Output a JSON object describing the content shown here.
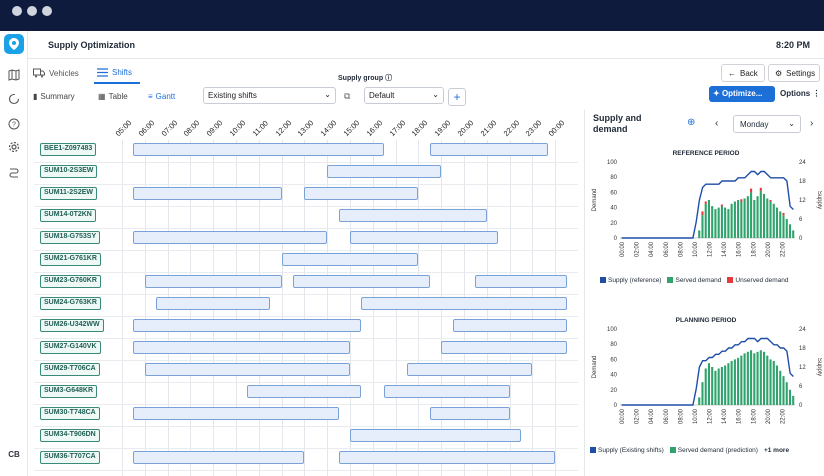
{
  "app": {
    "title": "Supply Optimization",
    "time": "8:20 PM",
    "user_initials": "CB"
  },
  "tabs": [
    {
      "label": "Vehicles"
    },
    {
      "label": "Shifts"
    }
  ],
  "subtabs": [
    {
      "label": "Summary"
    },
    {
      "label": "Table"
    },
    {
      "label": "Gantt"
    }
  ],
  "shift_select": "Existing shifts",
  "supply_group": {
    "label": "Supply group",
    "value": "Default"
  },
  "actions": {
    "back": "Back",
    "settings": "Settings",
    "optimize": "Optimize...",
    "options": "Options"
  },
  "supply_panel": {
    "title": "Supply and demand",
    "day": "Monday"
  },
  "hours": [
    "05:00",
    "06:00",
    "07:00",
    "08:00",
    "09:00",
    "10:00",
    "11:00",
    "12:00",
    "13:00",
    "14:00",
    "15:00",
    "16:00",
    "17:00",
    "18:00",
    "19:00",
    "20:00",
    "21:00",
    "22:00",
    "23:00",
    "00:00"
  ],
  "vehicles": [
    {
      "id": "BEE1-Z097483",
      "shifts": [
        [
          5.5,
          16.5
        ],
        [
          18.5,
          23.7
        ]
      ]
    },
    {
      "id": "SUM10-2S3EW",
      "shifts": [
        [
          14.0,
          19.0
        ]
      ]
    },
    {
      "id": "SUM11-2S2EW",
      "shifts": [
        [
          5.5,
          12.0
        ],
        [
          13.0,
          18.0
        ]
      ]
    },
    {
      "id": "SUM14-0T2KN",
      "shifts": [
        [
          14.5,
          21.0
        ]
      ]
    },
    {
      "id": "SUM18-G753SY",
      "shifts": [
        [
          5.5,
          14.0
        ],
        [
          15.0,
          21.5
        ]
      ]
    },
    {
      "id": "SUM21-G761KR",
      "shifts": [
        [
          12.0,
          18.0
        ]
      ]
    },
    {
      "id": "SUM23-G760KR",
      "shifts": [
        [
          6.0,
          12.0
        ],
        [
          12.5,
          18.5
        ],
        [
          20.5,
          24.5
        ]
      ]
    },
    {
      "id": "SUM24-G763KR",
      "shifts": [
        [
          6.5,
          11.5
        ],
        [
          15.5,
          24.5
        ]
      ]
    },
    {
      "id": "SUM26-U342WW",
      "shifts": [
        [
          5.5,
          15.5
        ],
        [
          19.5,
          24.5
        ]
      ]
    },
    {
      "id": "SUM27-G140VK",
      "shifts": [
        [
          5.5,
          15.0
        ],
        [
          19.0,
          24.5
        ]
      ]
    },
    {
      "id": "SUM29-T706CA",
      "shifts": [
        [
          6.0,
          15.0
        ],
        [
          17.5,
          23.0
        ]
      ]
    },
    {
      "id": "SUM3-G648KR",
      "shifts": [
        [
          10.5,
          15.5
        ],
        [
          16.5,
          22.0
        ]
      ]
    },
    {
      "id": "SUM30-T748CA",
      "shifts": [
        [
          5.5,
          14.5
        ],
        [
          18.5,
          22.0
        ]
      ]
    },
    {
      "id": "SUM34-T906DN",
      "shifts": [
        [
          15.0,
          22.5
        ]
      ]
    },
    {
      "id": "SUM36-T707CA",
      "shifts": [
        [
          5.5,
          13.0
        ],
        [
          14.5,
          24.0
        ]
      ]
    }
  ],
  "charts": [
    {
      "title": "REFERENCE PERIOD",
      "ylabel_left": "Demand",
      "ylabel_right": "Supply",
      "ylim": [
        0,
        100
      ],
      "y2lim": [
        0,
        24
      ],
      "legend": [
        {
          "label": "Supply (reference)",
          "color": "#1f4ea8"
        },
        {
          "label": "Served demand",
          "color": "#2fa36b"
        },
        {
          "label": "Unserved demand",
          "color": "#e23b3b"
        }
      ]
    },
    {
      "title": "PLANNING PERIOD",
      "ylabel_left": "Demand",
      "ylabel_right": "Supply",
      "ylim": [
        0,
        100
      ],
      "y2lim": [
        0,
        24
      ],
      "legend": [
        {
          "label": "Supply (Existing shifts)",
          "color": "#1f4ea8"
        },
        {
          "label": "Served demand (prediction)",
          "color": "#2fa36b"
        },
        {
          "label": "+1 more",
          "color": ""
        }
      ]
    }
  ],
  "chart_data": [
    {
      "type": "bar",
      "title": "REFERENCE PERIOD",
      "xlabel": "",
      "ylabel": "Demand",
      "ylim": [
        0,
        100
      ],
      "x_ticks": [
        "00:00",
        "02:00",
        "04:00",
        "06:00",
        "08:00",
        "10:00",
        "12:00",
        "14:00",
        "16:00",
        "18:00",
        "20:00",
        "22:00"
      ],
      "y_ticks": [
        0,
        20,
        40,
        60,
        80,
        100
      ],
      "y2_ticks": [
        0,
        6,
        12,
        18,
        24
      ],
      "series": [
        {
          "name": "Served demand",
          "values": [
            0,
            0,
            0,
            0,
            0,
            0,
            0,
            0,
            0,
            0,
            0,
            0,
            0,
            0,
            0,
            0,
            0,
            0,
            0,
            0,
            0,
            0,
            0,
            0,
            10,
            30,
            45,
            50,
            42,
            38,
            40,
            42,
            40,
            38,
            45,
            48,
            50,
            48,
            52,
            55,
            60,
            50,
            55,
            62,
            58,
            52,
            48,
            45,
            40,
            35,
            30,
            25,
            18,
            10
          ]
        },
        {
          "name": "Unserved demand",
          "values": [
            0,
            0,
            0,
            0,
            0,
            0,
            0,
            0,
            0,
            0,
            0,
            0,
            0,
            0,
            0,
            0,
            0,
            0,
            0,
            0,
            0,
            0,
            0,
            0,
            0,
            5,
            3,
            0,
            0,
            0,
            0,
            2,
            0,
            0,
            0,
            0,
            0,
            3,
            0,
            0,
            5,
            0,
            0,
            4,
            0,
            0,
            2,
            0,
            0,
            0,
            3,
            0,
            0,
            0
          ]
        },
        {
          "name": "Supply (reference)",
          "values": [
            0,
            0,
            0,
            0,
            0,
            0,
            0,
            0,
            0,
            0,
            0,
            0,
            0,
            0,
            0,
            0,
            0,
            0,
            0,
            0,
            0,
            0,
            0,
            5,
            12,
            16,
            17,
            17,
            17,
            17,
            17,
            18,
            18,
            18,
            18,
            18,
            19,
            19,
            19,
            20,
            21,
            21,
            20,
            21,
            21,
            20,
            19,
            19,
            19,
            19,
            19,
            18,
            10,
            9
          ]
        }
      ]
    },
    {
      "type": "bar",
      "title": "PLANNING PERIOD",
      "xlabel": "",
      "ylabel": "Demand",
      "ylim": [
        0,
        100
      ],
      "x_ticks": [
        "00:00",
        "02:00",
        "04:00",
        "06:00",
        "08:00",
        "10:00",
        "12:00",
        "14:00",
        "16:00",
        "18:00",
        "20:00",
        "22:00"
      ],
      "y_ticks": [
        0,
        20,
        40,
        60,
        80,
        100
      ],
      "y2_ticks": [
        0,
        6,
        12,
        18,
        24
      ],
      "series": [
        {
          "name": "Served demand (prediction)",
          "values": [
            0,
            0,
            0,
            0,
            0,
            0,
            0,
            0,
            0,
            0,
            0,
            0,
            0,
            0,
            0,
            0,
            0,
            0,
            0,
            0,
            0,
            0,
            0,
            0,
            10,
            30,
            48,
            55,
            50,
            45,
            48,
            50,
            52,
            55,
            58,
            60,
            62,
            65,
            68,
            70,
            72,
            68,
            70,
            72,
            70,
            65,
            60,
            58,
            52,
            45,
            38,
            30,
            20,
            12
          ]
        },
        {
          "name": "Supply (Existing shifts)",
          "values": [
            0,
            0,
            0,
            0,
            0,
            0,
            0,
            0,
            0,
            0,
            0,
            0,
            0,
            0,
            0,
            0,
            0,
            0,
            0,
            0,
            0,
            0,
            0,
            5,
            12,
            14,
            14,
            15,
            15,
            16,
            16,
            17,
            17,
            18,
            18,
            19,
            19,
            20,
            20,
            21,
            21,
            21,
            20,
            21,
            21,
            21,
            20,
            19,
            19,
            18,
            18,
            17,
            10,
            9
          ]
        }
      ]
    }
  ]
}
